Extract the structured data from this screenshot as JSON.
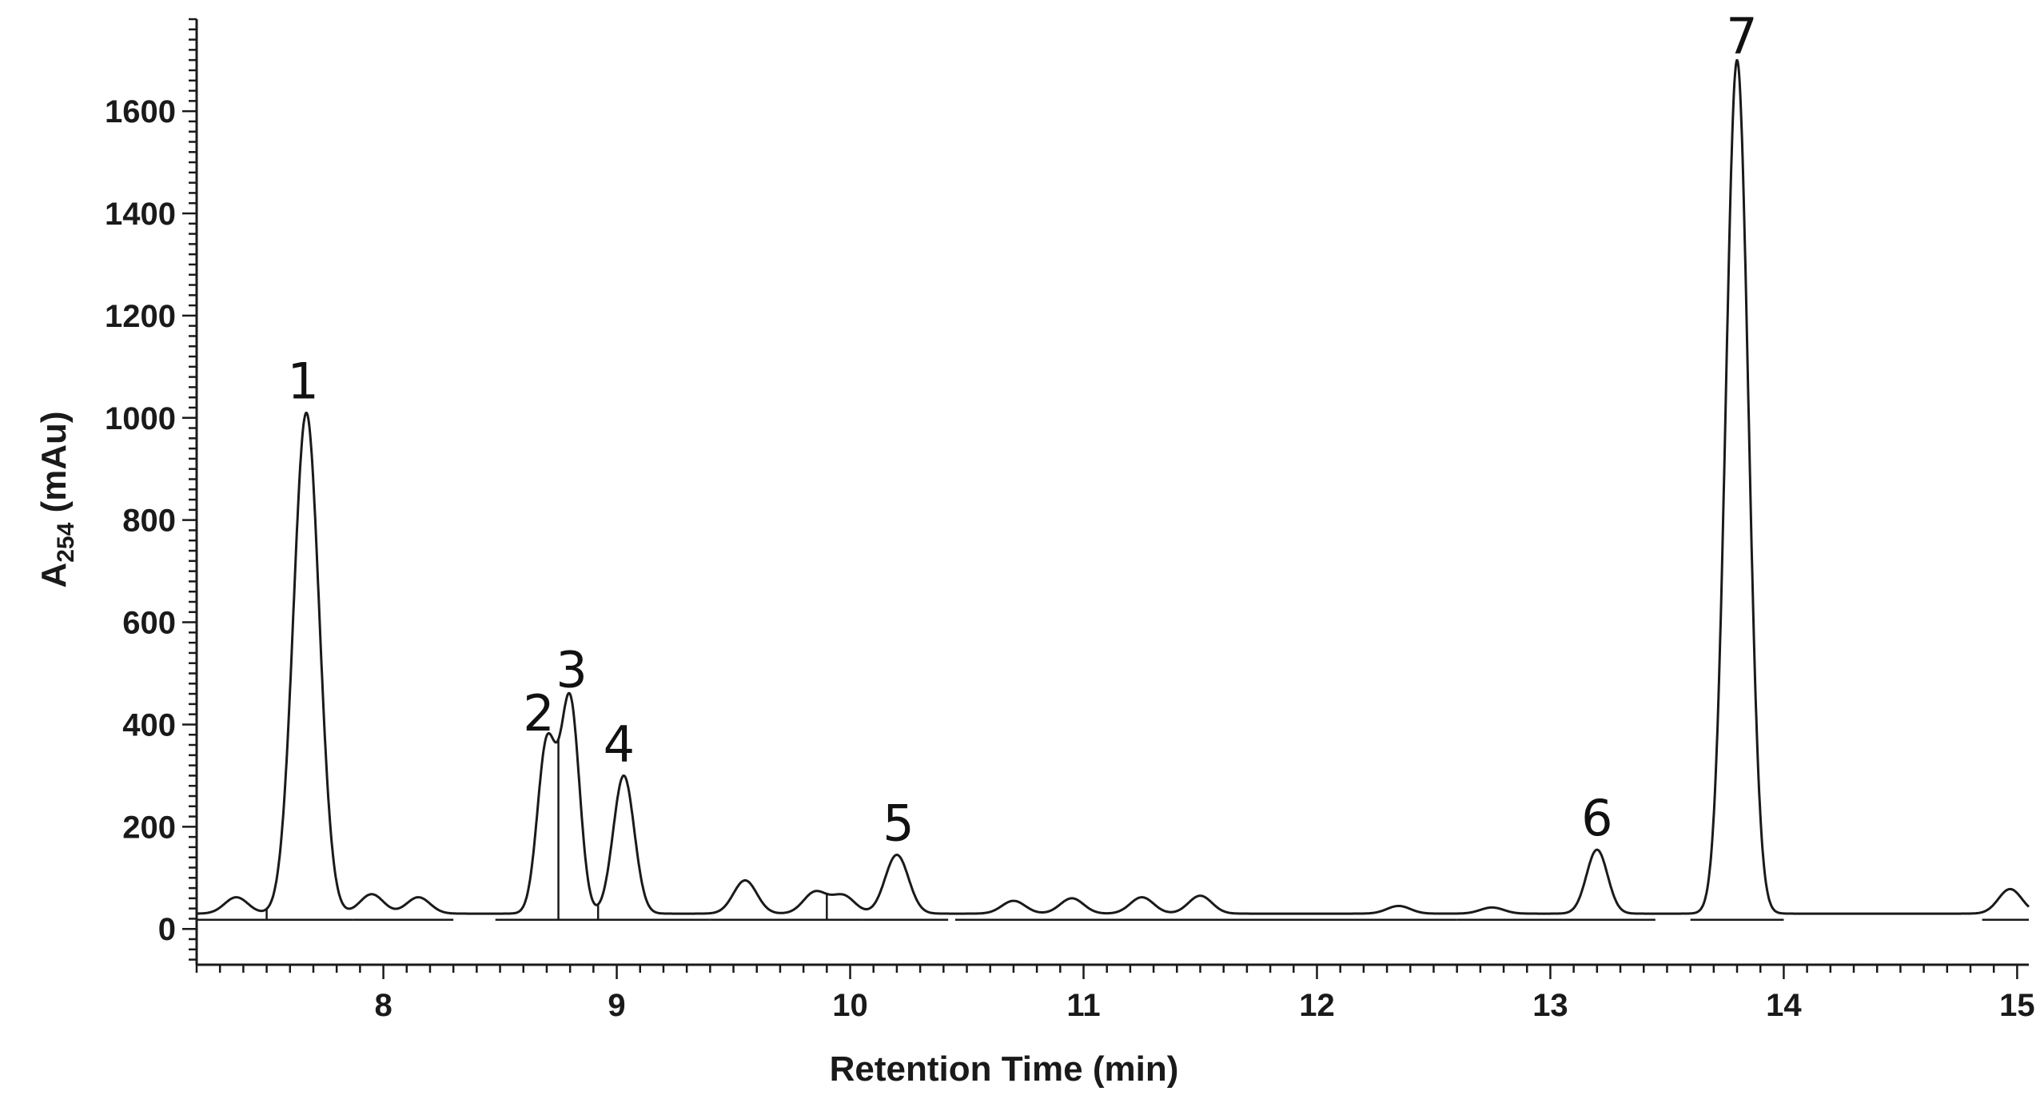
{
  "chart_data": {
    "type": "line",
    "title": "",
    "xlabel": "Retention Time (min)",
    "ylabel": {
      "main": "A",
      "sub": "254",
      "unit": " (mAu)"
    },
    "xlim": [
      7.2,
      15.05
    ],
    "ylim": [
      -70,
      1780
    ],
    "x_ticks": [
      8,
      9,
      10,
      11,
      12,
      13,
      14,
      15
    ],
    "y_ticks": [
      0,
      200,
      400,
      600,
      800,
      1000,
      1200,
      1400,
      1600
    ],
    "grid": false,
    "line_color": "#1a1a1a",
    "baseline": 30,
    "peaks": [
      {
        "label": "1",
        "x": 7.67,
        "height": 1010
      },
      {
        "label": "2",
        "x": 8.7,
        "height": 360
      },
      {
        "label": "3",
        "x": 8.8,
        "height": 445
      },
      {
        "label": "4",
        "x": 9.03,
        "height": 300
      },
      {
        "label": "5",
        "x": 10.2,
        "height": 145
      },
      {
        "label": "6",
        "x": 13.2,
        "height": 155
      },
      {
        "label": "7",
        "x": 13.8,
        "height": 1700
      }
    ],
    "minor_peaks": [
      {
        "x": 7.37,
        "height": 62
      },
      {
        "x": 7.95,
        "height": 68
      },
      {
        "x": 8.15,
        "height": 62
      },
      {
        "x": 9.55,
        "height": 95
      },
      {
        "x": 9.85,
        "height": 72
      },
      {
        "x": 9.97,
        "height": 65
      },
      {
        "x": 10.7,
        "height": 55
      },
      {
        "x": 10.95,
        "height": 60
      },
      {
        "x": 11.25,
        "height": 62
      },
      {
        "x": 11.5,
        "height": 65
      },
      {
        "x": 12.35,
        "height": 45
      },
      {
        "x": 12.75,
        "height": 42
      },
      {
        "x": 14.97,
        "height": 78
      }
    ]
  }
}
